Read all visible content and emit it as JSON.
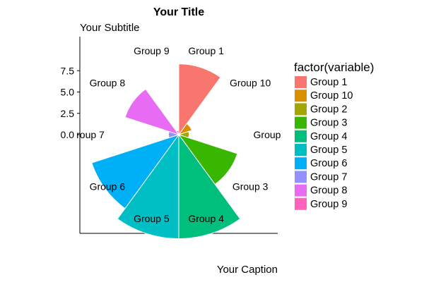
{
  "chart_data": {
    "type": "polar-bar",
    "title": "Your Title",
    "subtitle": "Your Subtitle",
    "caption": "Your Caption",
    "categories": [
      "Group 1",
      "Group 10",
      "Group 2",
      "Group 3",
      "Group 4",
      "Group 5",
      "Group 6",
      "Group 7",
      "Group 8",
      "Group 9"
    ],
    "values": [
      8.3,
      1.6,
      1.2,
      7.2,
      12.2,
      12.2,
      10.7,
      1.2,
      6.6,
      0.5
    ],
    "colors": [
      "#F8766D",
      "#D89000",
      "#A3A500",
      "#39B600",
      "#00BF7D",
      "#00BFC4",
      "#00B0F6",
      "#9590FF",
      "#E76BF3",
      "#FF62BC"
    ],
    "y_ticks": [
      0.0,
      2.5,
      5.0,
      7.5
    ],
    "y_tick_labels": [
      "0.0",
      "2.5",
      "5.0",
      "7.5"
    ],
    "category_labels": [
      "Group 1",
      "Group 10",
      "Group",
      "Group 3",
      "Group 4",
      "Group 5",
      "Group 6",
      "roup 7",
      "Group 8",
      "Group 9"
    ],
    "legend": {
      "title": "factor(variable)",
      "placement": "right",
      "entries": [
        "Group 1",
        "Group 10",
        "Group 2",
        "Group 3",
        "Group 4",
        "Group 5",
        "Group 6",
        "Group 7",
        "Group 8",
        "Group 9"
      ]
    }
  }
}
